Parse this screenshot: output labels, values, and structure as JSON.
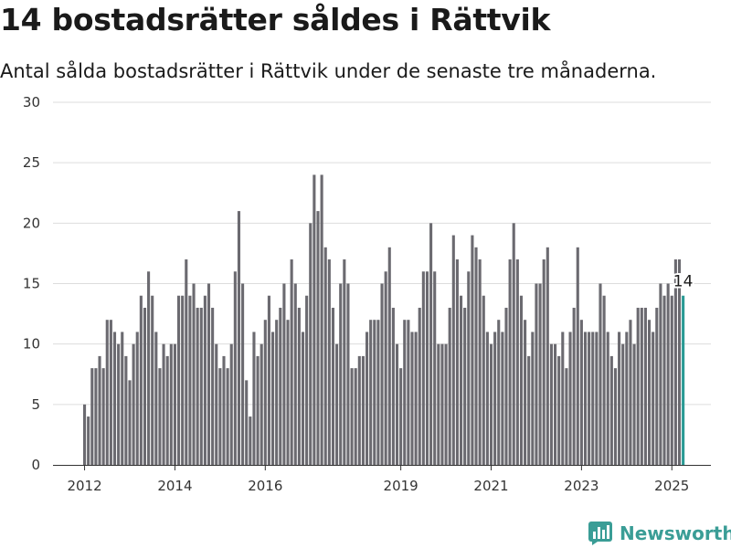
{
  "title": "14 bostadsrätter såldes i Rättvik",
  "subtitle": "Antal sålda bostadsrätter i Rättvik under de senaste tre månaderna.",
  "brand": {
    "name": "Newsworthy",
    "icon": "newsworthy-logo-icon",
    "color": "#3a9d96"
  },
  "chart_data": {
    "type": "bar",
    "start_month": "2012-01",
    "x_ticks": [
      "2012",
      "2014",
      "2016",
      "2019",
      "2021",
      "2023",
      "2025"
    ],
    "y_ticks": [
      0,
      5,
      10,
      15,
      20,
      25,
      30
    ],
    "ylim": [
      0,
      30
    ],
    "grid": true,
    "bar_color": "#6b6a70",
    "highlight_color": "#2a9a94",
    "highlight_label": "14",
    "values": [
      5,
      4,
      8,
      8,
      9,
      8,
      12,
      12,
      11,
      10,
      11,
      9,
      7,
      10,
      11,
      14,
      13,
      16,
      14,
      11,
      8,
      10,
      9,
      10,
      10,
      14,
      14,
      17,
      14,
      15,
      13,
      13,
      14,
      15,
      13,
      10,
      8,
      9,
      8,
      10,
      16,
      21,
      15,
      7,
      4,
      11,
      9,
      10,
      12,
      14,
      11,
      12,
      13,
      15,
      12,
      17,
      15,
      13,
      11,
      14,
      20,
      24,
      21,
      24,
      18,
      17,
      13,
      10,
      15,
      17,
      15,
      8,
      8,
      9,
      9,
      11,
      12,
      12,
      12,
      15,
      16,
      18,
      13,
      10,
      8,
      12,
      12,
      11,
      11,
      13,
      16,
      16,
      20,
      16,
      10,
      10,
      10,
      13,
      19,
      17,
      14,
      13,
      16,
      19,
      18,
      17,
      14,
      11,
      10,
      11,
      12,
      11,
      13,
      17,
      20,
      17,
      14,
      12,
      9,
      11,
      15,
      15,
      17,
      18,
      10,
      10,
      9,
      11,
      8,
      11,
      13,
      18,
      12,
      11,
      11,
      11,
      11,
      15,
      14,
      11,
      9,
      8,
      11,
      10,
      11,
      12,
      10,
      13,
      13,
      13,
      12,
      11,
      13,
      15,
      14,
      15,
      14,
      17,
      17,
      14
    ]
  }
}
